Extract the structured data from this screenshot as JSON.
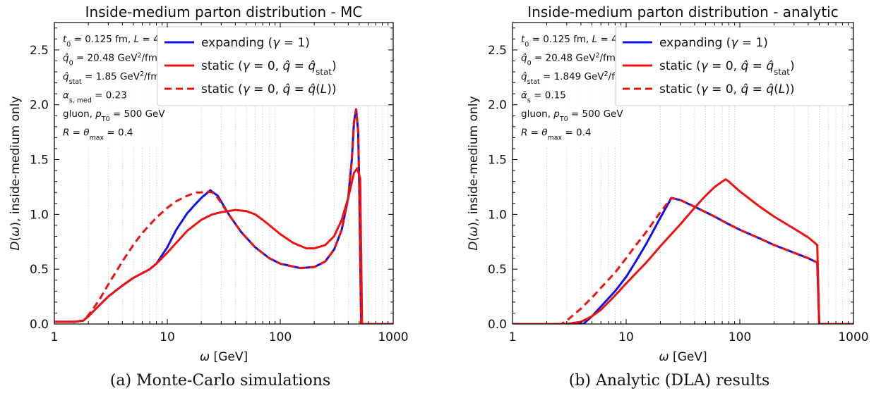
{
  "figure": {
    "captions": [
      "(a) Monte-Carlo simulations",
      "(b) Analytic (DLA) results"
    ]
  },
  "chart_data": [
    {
      "type": "line",
      "title": "Inside-medium parton distribution - MC",
      "xlabel": "ω [GeV]",
      "ylabel": "D(ω), inside-medium only",
      "xscale": "log",
      "xlim": [
        1,
        1000
      ],
      "ylim": [
        0,
        2.75
      ],
      "xticks": [
        "1",
        "10",
        "100",
        "1000"
      ],
      "yticks": [
        "0.0",
        "0.5",
        "1.0",
        "1.5",
        "2.0",
        "2.5"
      ],
      "grid": "vertical minor dotted",
      "legend_position": "top-right",
      "annotations": [
        "t_0 = 0.125 fm, L = 4 fm",
        "q̂_0 = 20.48 GeV²/fm",
        "q̂_stat = 1.85 GeV²/fm",
        "α_s,med = 0.23",
        "gluon, p_T0 = 500 GeV",
        "R = θ_max = 0.4"
      ],
      "series": [
        {
          "name": "expanding (γ = 1)",
          "color": "#1111ee",
          "dash": "solid",
          "x": [
            1,
            1.5,
            1.8,
            2,
            2.5,
            3,
            4,
            5,
            7,
            8,
            10,
            12,
            15,
            18,
            20,
            24,
            28,
            35,
            45,
            60,
            80,
            100,
            150,
            200,
            250,
            300,
            350,
            400,
            430,
            450,
            470,
            490,
            500,
            520,
            1000
          ],
          "y": [
            0.02,
            0.02,
            0.03,
            0.07,
            0.17,
            0.25,
            0.35,
            0.42,
            0.5,
            0.55,
            0.7,
            0.86,
            1.01,
            1.1,
            1.15,
            1.22,
            1.17,
            1.0,
            0.84,
            0.7,
            0.6,
            0.55,
            0.51,
            0.52,
            0.57,
            0.68,
            0.86,
            1.15,
            1.5,
            1.85,
            1.96,
            1.75,
            1.3,
            0.0,
            0.0
          ]
        },
        {
          "name": "static (γ = 0, q̂ = q̂_stat)",
          "color": "#ee1111",
          "dash": "solid",
          "x": [
            1,
            1.5,
            1.8,
            2,
            2.5,
            3,
            4,
            5,
            7,
            8,
            10,
            12,
            15,
            20,
            25,
            30,
            40,
            50,
            60,
            70,
            100,
            130,
            170,
            200,
            250,
            300,
            350,
            400,
            450,
            480,
            510,
            530,
            1000
          ],
          "y": [
            0.02,
            0.02,
            0.03,
            0.07,
            0.17,
            0.25,
            0.35,
            0.42,
            0.5,
            0.55,
            0.65,
            0.74,
            0.85,
            0.95,
            1.0,
            1.02,
            1.04,
            1.03,
            1.0,
            0.95,
            0.82,
            0.74,
            0.69,
            0.69,
            0.72,
            0.8,
            0.95,
            1.15,
            1.38,
            1.42,
            1.33,
            0.0,
            0.0
          ]
        },
        {
          "name": "static (γ = 0, q̂ = q̂(L))",
          "color": "#ee1111",
          "dash": "dashed",
          "x": [
            1,
            1.5,
            1.8,
            2,
            2.5,
            3,
            4,
            5,
            6,
            8,
            10,
            12,
            15,
            18,
            20,
            22,
            25,
            28,
            35,
            45,
            60,
            80,
            100,
            150,
            200,
            250,
            300,
            350,
            400,
            430,
            450,
            470,
            490,
            500,
            520,
            1000
          ],
          "y": [
            0.02,
            0.02,
            0.03,
            0.08,
            0.22,
            0.36,
            0.57,
            0.72,
            0.83,
            0.97,
            1.06,
            1.12,
            1.17,
            1.2,
            1.2,
            1.21,
            1.2,
            1.15,
            1.0,
            0.84,
            0.7,
            0.6,
            0.55,
            0.51,
            0.52,
            0.57,
            0.68,
            0.86,
            1.15,
            1.5,
            1.85,
            1.96,
            1.75,
            1.3,
            0.0,
            0.0
          ]
        }
      ]
    },
    {
      "type": "line",
      "title": "Inside-medium parton distribution - analytic",
      "xlabel": "ω [GeV]",
      "ylabel": "D(ω), inside-medium only",
      "xscale": "log",
      "xlim": [
        1,
        1000
      ],
      "ylim": [
        0,
        2.75
      ],
      "xticks": [
        "1",
        "10",
        "100",
        "1000"
      ],
      "yticks": [
        "0.0",
        "0.5",
        "1.0",
        "1.5",
        "2.0",
        "2.5"
      ],
      "grid": "vertical minor dotted",
      "legend_position": "top-right",
      "annotations": [
        "t_0 = 0.125 fm, L = 4 fm",
        "q̂_0 = 20.48 GeV²/fm",
        "q̂_stat = 1.849 GeV²/fm",
        "ᾱ_s = 0.15",
        "gluon, p_T0 = 500 GeV",
        "R = θ_max = 0.4"
      ],
      "series": [
        {
          "name": "expanding (γ = 1)",
          "color": "#1111ee",
          "dash": "solid",
          "x": [
            1,
            4.2,
            5,
            6,
            8,
            10,
            12,
            15,
            20,
            25,
            30,
            40,
            60,
            80,
            100,
            150,
            200,
            300,
            400,
            480,
            500,
            1000
          ],
          "y": [
            0.0,
            0.0,
            0.07,
            0.16,
            0.3,
            0.43,
            0.56,
            0.73,
            0.97,
            1.15,
            1.13,
            1.07,
            0.98,
            0.91,
            0.86,
            0.78,
            0.72,
            0.65,
            0.6,
            0.56,
            0.0,
            0.0
          ]
        },
        {
          "name": "static (γ = 0, q̂ = q̂_stat)",
          "color": "#ee1111",
          "dash": "solid",
          "x": [
            1,
            3,
            4,
            5,
            6,
            8,
            10,
            15,
            20,
            30,
            40,
            50,
            60,
            70,
            75,
            80,
            100,
            150,
            200,
            300,
            400,
            480,
            500,
            1000
          ],
          "y": [
            0.0,
            0.0,
            0.02,
            0.07,
            0.13,
            0.26,
            0.37,
            0.56,
            0.71,
            0.91,
            1.06,
            1.17,
            1.25,
            1.3,
            1.32,
            1.3,
            1.21,
            1.07,
            0.98,
            0.87,
            0.79,
            0.72,
            0.0,
            0.0
          ]
        },
        {
          "name": "static (γ = 0, q̂ = q̂(L))",
          "color": "#ee1111",
          "dash": "dashed",
          "x": [
            1,
            2.7,
            3,
            4,
            5,
            6,
            8,
            10,
            12,
            15,
            20,
            25,
            30,
            40,
            60,
            80,
            100,
            150,
            200,
            300,
            400,
            480,
            500,
            1000
          ],
          "y": [
            0.0,
            0.0,
            0.03,
            0.14,
            0.24,
            0.33,
            0.47,
            0.6,
            0.71,
            0.84,
            1.02,
            1.15,
            1.13,
            1.07,
            0.98,
            0.91,
            0.86,
            0.78,
            0.72,
            0.65,
            0.6,
            0.56,
            0.0,
            0.0
          ]
        }
      ]
    }
  ]
}
